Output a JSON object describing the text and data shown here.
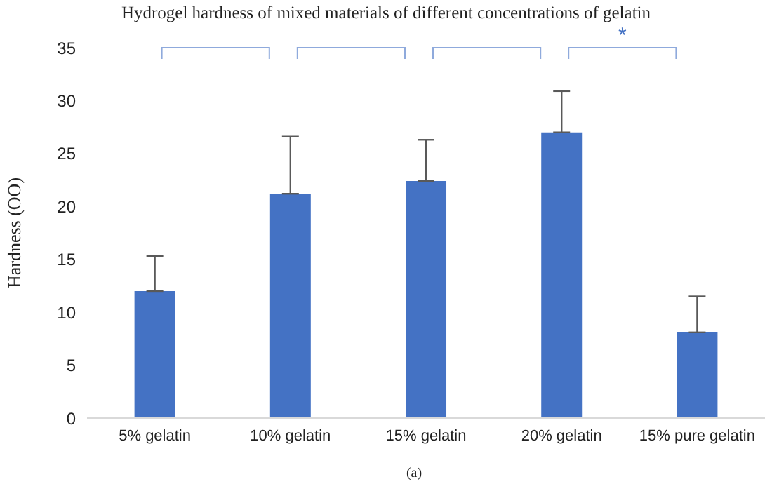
{
  "chart_data": {
    "type": "bar",
    "title": "Hydrogel hardness of mixed materials of different concentrations of gelatin",
    "ylabel": "Hardness (OO)",
    "categories": [
      "5% gelatin",
      "10% gelatin",
      "15% gelatin",
      "20% gelatin",
      "15% pure gelatin"
    ],
    "values": [
      12.0,
      21.2,
      22.4,
      27.0,
      8.1
    ],
    "errors": [
      [
        12.0,
        15.3
      ],
      [
        21.2,
        26.6
      ],
      [
        22.4,
        26.3
      ],
      [
        27.0,
        30.9
      ],
      [
        8.1,
        11.5
      ]
    ],
    "color": "#4472c4",
    "ylim": [
      0,
      35
    ],
    "yticks": [
      0,
      5,
      10,
      15,
      20,
      25,
      30,
      35
    ],
    "grid": false,
    "annotations": [
      "*",
      "(a)"
    ]
  }
}
